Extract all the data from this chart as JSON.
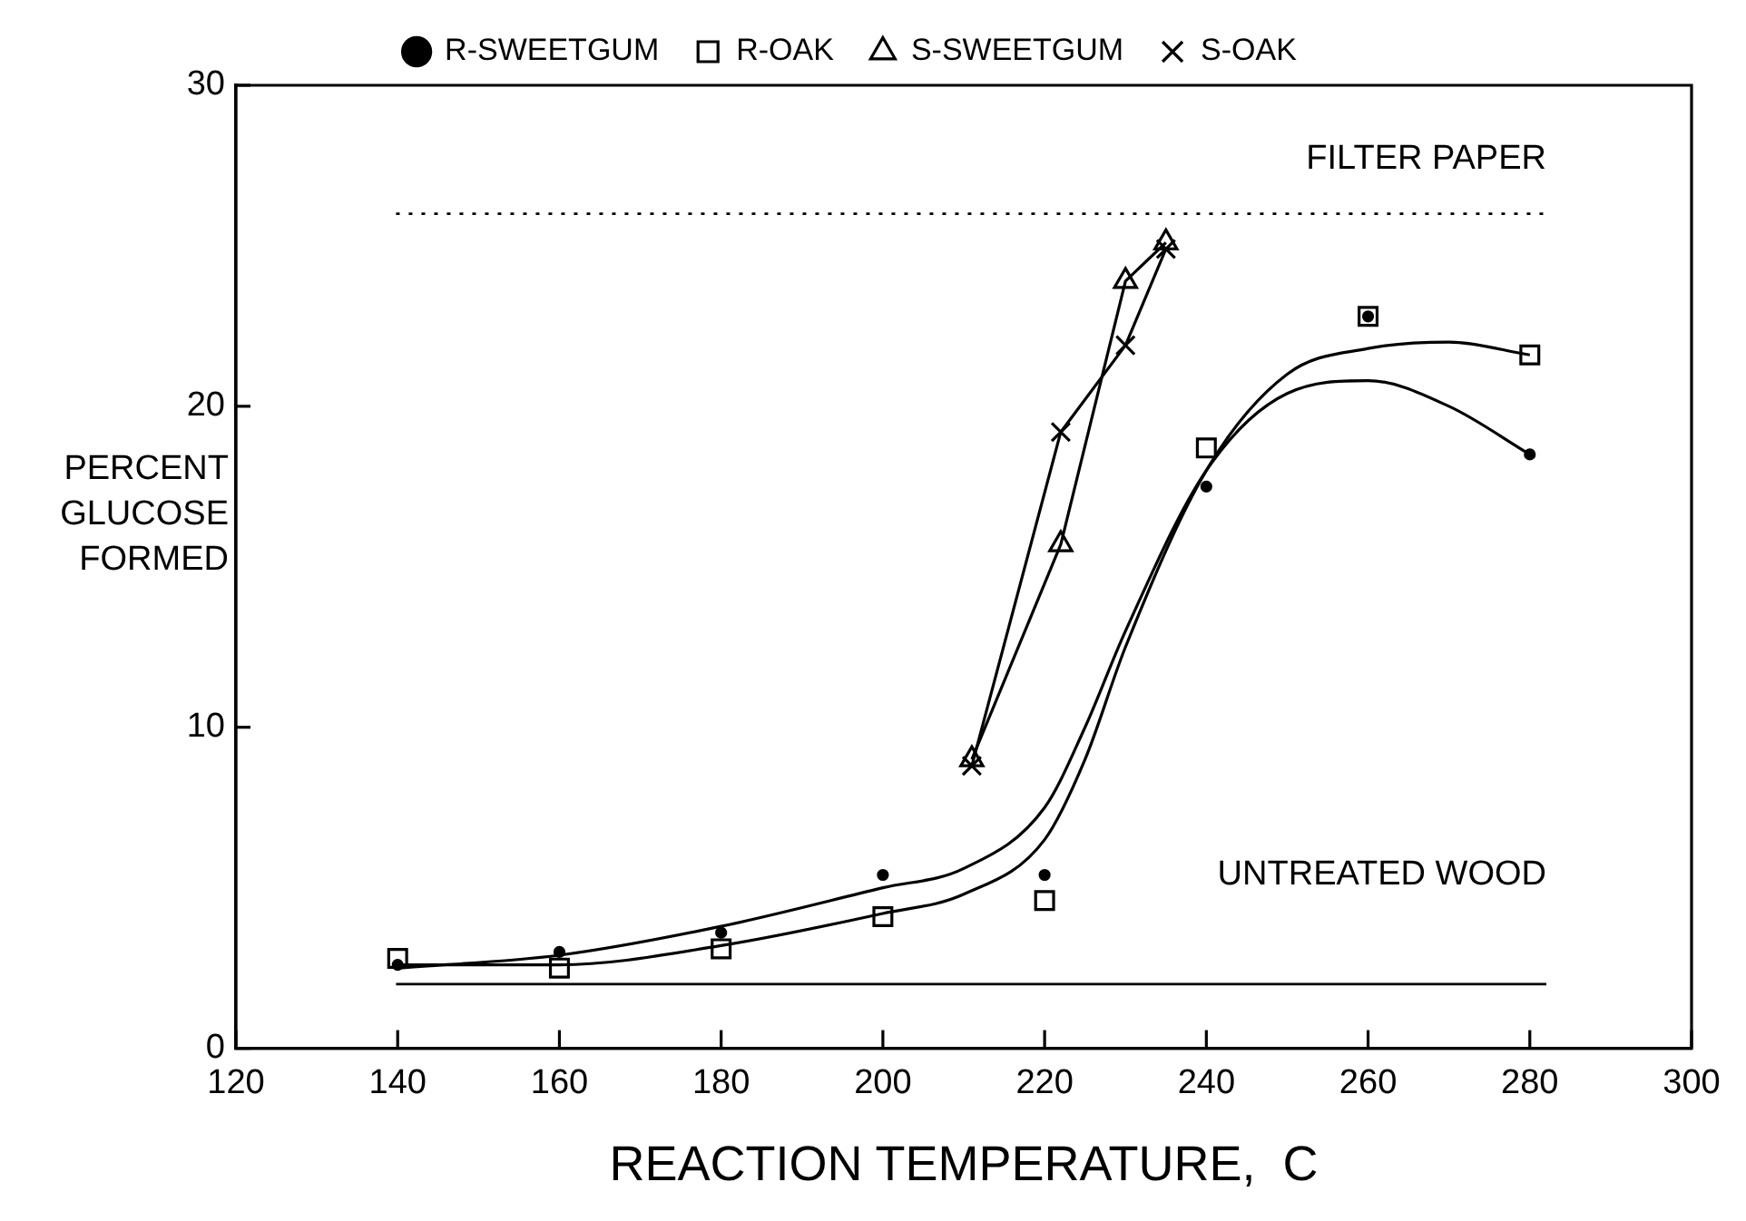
{
  "chart_data": {
    "type": "scatter",
    "xlabel": "REACTION TEMPERATURE,  C",
    "ylabel": "PERCENT GLUCOSE FORMED",
    "xlim": [
      120,
      300
    ],
    "xticks": [
      120,
      140,
      160,
      180,
      200,
      220,
      240,
      260,
      280,
      300
    ],
    "ylim": [
      0,
      30
    ],
    "yticks": [
      0,
      10,
      20,
      30
    ],
    "grid": false,
    "legend": "top",
    "series": [
      {
        "name": "R-SWEETGUM",
        "type": "scatter",
        "marker": "circle",
        "color": "#000000",
        "x": [
          140,
          160,
          180,
          200,
          220,
          240,
          260,
          280
        ],
        "values": [
          2.6,
          3.0,
          3.6,
          5.4,
          5.4,
          17.5,
          22.8,
          18.5
        ]
      },
      {
        "name": "R-OAK",
        "type": "scatter",
        "marker": "square",
        "color": "#000000",
        "x": [
          140,
          160,
          180,
          200,
          220,
          240,
          260,
          280
        ],
        "values": [
          2.8,
          2.5,
          3.1,
          4.1,
          4.6,
          18.7,
          22.8,
          21.6
        ]
      },
      {
        "name": "S-SWEETGUM",
        "type": "line",
        "marker": "triangle",
        "color": "#000000",
        "x": [
          211,
          222,
          230,
          235
        ],
        "values": [
          9.0,
          15.7,
          23.9,
          25.1
        ]
      },
      {
        "name": "S-OAK",
        "type": "line",
        "marker": "cross",
        "color": "#000000",
        "x": [
          211,
          222,
          230,
          235
        ],
        "values": [
          8.8,
          19.2,
          21.9,
          24.9
        ]
      },
      {
        "type": "line",
        "marker": "none",
        "color": "#000000",
        "x": [
          140,
          160,
          180,
          200,
          210,
          220,
          225,
          230,
          240,
          250,
          260,
          270,
          280
        ],
        "values": [
          2.5,
          2.9,
          3.8,
          5.0,
          5.6,
          7.5,
          10,
          13,
          18,
          20.4,
          20.8,
          20,
          18.5
        ]
      },
      {
        "type": "line",
        "marker": "none",
        "color": "#000000",
        "x": [
          140,
          160,
          180,
          200,
          210,
          220,
          225,
          230,
          240,
          250,
          260,
          270,
          280
        ],
        "values": [
          2.6,
          2.6,
          3.2,
          4.2,
          4.8,
          6.5,
          9,
          12.5,
          18,
          21,
          21.8,
          22,
          21.6
        ]
      }
    ],
    "ref_lines": [
      {
        "axis": "y",
        "value": 26,
        "label": "FILTER PAPER",
        "line_style": "dotted",
        "color": "#000000"
      },
      {
        "axis": "y",
        "value": 2,
        "label": "UNTREATED WOOD",
        "line_style": "solid",
        "color": "#000000"
      }
    ]
  }
}
